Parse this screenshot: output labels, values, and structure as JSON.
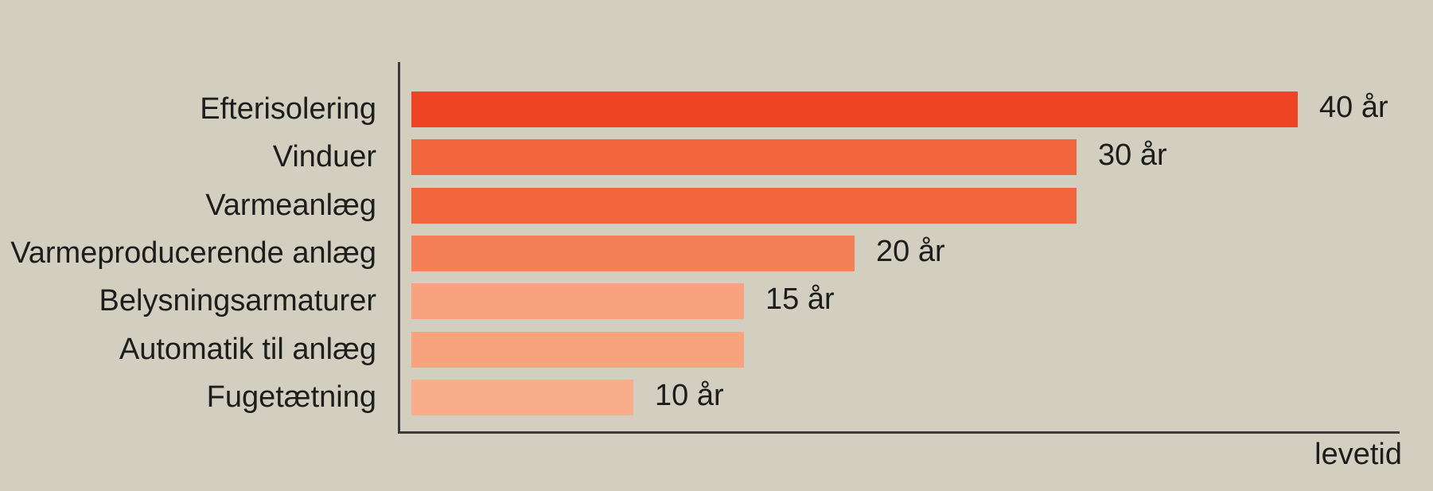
{
  "chart_data": {
    "type": "bar",
    "orientation": "horizontal",
    "title": "",
    "xlabel": "levetid",
    "ylabel": "",
    "unit": "år",
    "xlim": [
      0,
      45
    ],
    "grid": false,
    "legend": false,
    "categories": [
      "Efterisolering",
      "Vinduer",
      "Varmeanlæg",
      "Varmeproducerende anlæg",
      "Belysningsarmaturer",
      "Automatik til anlæg",
      "Fugetætning"
    ],
    "values": [
      40,
      30,
      30,
      20,
      15,
      15,
      10
    ],
    "value_labels": [
      "40 år",
      "30 år",
      "",
      "20 år",
      "15 år",
      "",
      "10 år"
    ],
    "bar_colors": [
      "#ee4423",
      "#f2663f",
      "#f2663f",
      "#f58058",
      "#f8a37e",
      "#f8a37e",
      "#f9ad8a"
    ]
  },
  "colors": {
    "background": "#d2cfc1",
    "axis": "#3a3a3a",
    "text": "#1d1d1b"
  }
}
